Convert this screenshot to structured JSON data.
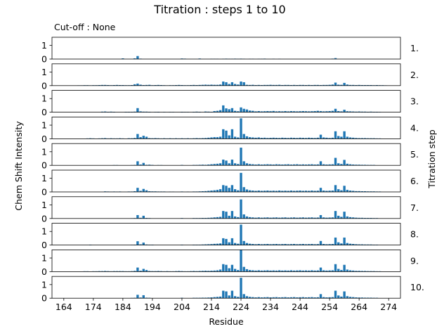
{
  "chart_data": {
    "type": "bar",
    "title": "Titration : steps 1 to 10",
    "subtitle": "Cut-off : None",
    "xlabel": "Residue",
    "ylabel": "Chem Shift Intensity",
    "right_label": "Titration step",
    "bar_color": "#1f77b4",
    "xlim": [
      160,
      278
    ],
    "ylim": [
      0,
      1.6
    ],
    "xticks": [
      164,
      174,
      184,
      194,
      204,
      214,
      224,
      234,
      244,
      254,
      264,
      274
    ],
    "yticks": [
      0,
      1
    ],
    "grid": false,
    "residues": [
      164,
      165,
      166,
      167,
      168,
      169,
      170,
      171,
      172,
      173,
      174,
      175,
      176,
      177,
      178,
      179,
      180,
      181,
      182,
      183,
      184,
      185,
      186,
      187,
      188,
      189,
      190,
      191,
      192,
      193,
      194,
      195,
      196,
      197,
      198,
      199,
      200,
      201,
      202,
      203,
      204,
      205,
      206,
      207,
      208,
      209,
      210,
      211,
      212,
      213,
      214,
      215,
      216,
      217,
      218,
      219,
      220,
      221,
      222,
      223,
      224,
      225,
      226,
      227,
      228,
      229,
      230,
      231,
      232,
      233,
      234,
      235,
      236,
      237,
      238,
      239,
      240,
      241,
      242,
      243,
      244,
      245,
      246,
      247,
      248,
      249,
      250,
      251,
      252,
      253,
      254,
      255,
      256,
      257,
      258,
      259,
      260,
      261,
      262,
      263,
      264,
      265,
      266,
      267,
      268,
      269,
      270,
      271,
      272,
      273,
      274
    ],
    "panels": [
      {
        "label": "1.",
        "values": [
          0,
          0,
          0,
          0,
          0,
          0,
          0,
          0,
          0,
          0,
          0,
          0,
          0,
          0,
          0,
          0,
          0,
          0,
          0,
          0,
          0.05,
          0,
          0,
          0,
          0.05,
          0.22,
          0.03,
          0,
          0,
          0,
          0,
          0,
          0,
          0,
          0,
          0,
          0,
          0,
          0,
          0,
          0.04,
          0.03,
          0,
          0,
          0,
          0,
          0.04,
          0,
          0,
          0,
          0.02,
          0.02,
          0.02,
          0,
          0.02,
          0.03,
          0.02,
          0.02,
          0.03,
          0.02,
          0.03,
          0.02,
          0,
          0.02,
          0.02,
          0,
          0.02,
          0.02,
          0.03,
          0,
          0,
          0.02,
          0,
          0.02,
          0,
          0,
          0,
          0,
          0,
          0,
          0,
          0,
          0,
          0,
          0,
          0,
          0,
          0,
          0,
          0,
          0,
          0.03,
          0.07,
          0,
          0,
          0,
          0,
          0,
          0,
          0,
          0,
          0,
          0,
          0,
          0,
          0,
          0,
          0,
          0,
          0,
          0
        ]
      },
      {
        "label": "2.",
        "values": [
          0,
          0,
          0,
          0,
          0,
          0.02,
          0.02,
          0.03,
          0.03,
          0.02,
          0.03,
          0.03,
          0.04,
          0.05,
          0.05,
          0.04,
          0.03,
          0.04,
          0.05,
          0.04,
          0.04,
          0.03,
          0.03,
          0.04,
          0.1,
          0.15,
          0.07,
          0.04,
          0.05,
          0.06,
          0.03,
          0.04,
          0.05,
          0.04,
          0.03,
          0.02,
          0.03,
          0.03,
          0.04,
          0.05,
          0.04,
          0.03,
          0.03,
          0.04,
          0.05,
          0.04,
          0.05,
          0.06,
          0.07,
          0.06,
          0.07,
          0.06,
          0.06,
          0.08,
          0.3,
          0.25,
          0.12,
          0.25,
          0.12,
          0.08,
          0.3,
          0.25,
          0.06,
          0.05,
          0.06,
          0.04,
          0.05,
          0.04,
          0.05,
          0.05,
          0.06,
          0.05,
          0.05,
          0.06,
          0.04,
          0.05,
          0.05,
          0.04,
          0.05,
          0.04,
          0.05,
          0.05,
          0.04,
          0.05,
          0.04,
          0.05,
          0.05,
          0.04,
          0.05,
          0.05,
          0.06,
          0.08,
          0.22,
          0.07,
          0.06,
          0.2,
          0.08,
          0.05,
          0.05,
          0.04,
          0.05,
          0.04,
          0.04,
          0.04,
          0.04,
          0.03,
          0.04,
          0.03,
          0.03,
          0.02,
          0
        ]
      },
      {
        "label": "3.",
        "values": [
          0,
          0,
          0,
          0,
          0,
          0,
          0,
          0,
          0,
          0,
          0,
          0,
          0,
          0.04,
          0.05,
          0.03,
          0.04,
          0.03,
          0,
          0,
          0,
          0.03,
          0.03,
          0.03,
          0.04,
          0.3,
          0.06,
          0.04,
          0.04,
          0.03,
          0,
          0.02,
          0.03,
          0,
          0.02,
          0,
          0.02,
          0.02,
          0,
          0,
          0.03,
          0.02,
          0.02,
          0,
          0.03,
          0.04,
          0.03,
          0,
          0.05,
          0.04,
          0.03,
          0.08,
          0.1,
          0.15,
          0.5,
          0.28,
          0.22,
          0.3,
          0.1,
          0.07,
          0.35,
          0.25,
          0.2,
          0.12,
          0.1,
          0.06,
          0.08,
          0.06,
          0.07,
          0.08,
          0.07,
          0.09,
          0.06,
          0.07,
          0.06,
          0.08,
          0.06,
          0.08,
          0.07,
          0.06,
          0.07,
          0.08,
          0.07,
          0.06,
          0.07,
          0.08,
          0.1,
          0.08,
          0.06,
          0.07,
          0.08,
          0.1,
          0.25,
          0.08,
          0.06,
          0.18,
          0.07,
          0.06,
          0.05,
          0.04,
          0.05,
          0.04,
          0.04,
          0.03,
          0.04,
          0.03,
          0.03,
          0.02,
          0,
          0,
          0
        ]
      },
      {
        "label": "4.",
        "values": [
          0,
          0,
          0,
          0,
          0,
          0,
          0,
          0,
          0.03,
          0.04,
          0.03,
          0,
          0.03,
          0.04,
          0.05,
          0.03,
          0.04,
          0.03,
          0.03,
          0.04,
          0.03,
          0.02,
          0.04,
          0.04,
          0.06,
          0.35,
          0.12,
          0.22,
          0.15,
          0.05,
          0.04,
          0.05,
          0.04,
          0.03,
          0.04,
          0.03,
          0.04,
          0.03,
          0.04,
          0.03,
          0.04,
          0.03,
          0.04,
          0.03,
          0.04,
          0.05,
          0.04,
          0.05,
          0.06,
          0.08,
          0.1,
          0.12,
          0.12,
          0.15,
          0.7,
          0.6,
          0.25,
          0.7,
          0.15,
          0.1,
          1.5,
          0.35,
          0.18,
          0.12,
          0.1,
          0.08,
          0.1,
          0.07,
          0.08,
          0.06,
          0.07,
          0.08,
          0.07,
          0.06,
          0.08,
          0.07,
          0.06,
          0.08,
          0.07,
          0.06,
          0.08,
          0.07,
          0.06,
          0.08,
          0.07,
          0.06,
          0.08,
          0.3,
          0.1,
          0.08,
          0.06,
          0.08,
          0.55,
          0.2,
          0.15,
          0.55,
          0.15,
          0.1,
          0.08,
          0.06,
          0.05,
          0.05,
          0.05,
          0.04,
          0.04,
          0.04,
          0.03,
          0.03,
          0,
          0,
          0
        ]
      },
      {
        "label": "5.",
        "values": [
          0,
          0,
          0,
          0,
          0,
          0,
          0,
          0,
          0,
          0,
          0,
          0,
          0,
          0,
          0,
          0,
          0,
          0.02,
          0.02,
          0,
          0,
          0,
          0,
          0.02,
          0.03,
          0.3,
          0.06,
          0.18,
          0.04,
          0.05,
          0.03,
          0,
          0.02,
          0.02,
          0,
          0,
          0,
          0,
          0,
          0,
          0.03,
          0,
          0,
          0,
          0.03,
          0.03,
          0.04,
          0.05,
          0.04,
          0.06,
          0.08,
          0.1,
          0.12,
          0.15,
          0.42,
          0.35,
          0.15,
          0.42,
          0.15,
          0.1,
          1.3,
          0.3,
          0.15,
          0.1,
          0.08,
          0.06,
          0.08,
          0.06,
          0.07,
          0.08,
          0.07,
          0.06,
          0.08,
          0.07,
          0.06,
          0.07,
          0.08,
          0.06,
          0.07,
          0.08,
          0.06,
          0.07,
          0.06,
          0.07,
          0.08,
          0.06,
          0.07,
          0.3,
          0.08,
          0.06,
          0.07,
          0.08,
          0.55,
          0.15,
          0.1,
          0.4,
          0.12,
          0.08,
          0.06,
          0.05,
          0.05,
          0.04,
          0.04,
          0.03,
          0.03,
          0.03,
          0,
          0,
          0,
          0,
          0
        ]
      },
      {
        "label": "6.",
        "values": [
          0,
          0,
          0,
          0,
          0,
          0,
          0,
          0,
          0,
          0,
          0,
          0,
          0,
          0,
          0.04,
          0.03,
          0.02,
          0.03,
          0.02,
          0.03,
          0,
          0,
          0.03,
          0.03,
          0.05,
          0.3,
          0.08,
          0.22,
          0.12,
          0.05,
          0.04,
          0.04,
          0.03,
          0.03,
          0.03,
          0,
          0.02,
          0.02,
          0,
          0,
          0.03,
          0,
          0.02,
          0,
          0.03,
          0.03,
          0.04,
          0.05,
          0.06,
          0.08,
          0.1,
          0.12,
          0.15,
          0.2,
          0.5,
          0.45,
          0.3,
          0.5,
          0.2,
          0.12,
          1.4,
          0.35,
          0.18,
          0.12,
          0.1,
          0.08,
          0.1,
          0.08,
          0.09,
          0.1,
          0.08,
          0.09,
          0.08,
          0.1,
          0.08,
          0.09,
          0.08,
          0.1,
          0.08,
          0.09,
          0.1,
          0.08,
          0.09,
          0.08,
          0.1,
          0.08,
          0.09,
          0.3,
          0.1,
          0.08,
          0.09,
          0.1,
          0.5,
          0.2,
          0.12,
          0.45,
          0.15,
          0.1,
          0.08,
          0.06,
          0.06,
          0.05,
          0.05,
          0.04,
          0.04,
          0.04,
          0.03,
          0.03,
          0,
          0,
          0
        ]
      },
      {
        "label": "7.",
        "values": [
          0,
          0,
          0,
          0,
          0,
          0,
          0,
          0,
          0,
          0,
          0,
          0,
          0,
          0,
          0,
          0,
          0,
          0,
          0,
          0,
          0,
          0,
          0,
          0.02,
          0.03,
          0.25,
          0.05,
          0.2,
          0.04,
          0.03,
          0,
          0,
          0,
          0,
          0,
          0,
          0,
          0,
          0,
          0,
          0.03,
          0,
          0,
          0,
          0.03,
          0.03,
          0.03,
          0.04,
          0.04,
          0.05,
          0.06,
          0.08,
          0.1,
          0.12,
          0.55,
          0.5,
          0.2,
          0.55,
          0.15,
          0.1,
          1.4,
          0.3,
          0.15,
          0.1,
          0.08,
          0.06,
          0.08,
          0.06,
          0.07,
          0.08,
          0.06,
          0.07,
          0.08,
          0.06,
          0.07,
          0.08,
          0.06,
          0.07,
          0.08,
          0.06,
          0.07,
          0.08,
          0.06,
          0.07,
          0.08,
          0.06,
          0.07,
          0.25,
          0.08,
          0.06,
          0.07,
          0.08,
          0.55,
          0.2,
          0.12,
          0.5,
          0.15,
          0.1,
          0.08,
          0.06,
          0.05,
          0.05,
          0.04,
          0.04,
          0.04,
          0.03,
          0.03,
          0,
          0,
          0,
          0
        ]
      },
      {
        "label": "8.",
        "values": [
          0,
          0,
          0,
          0,
          0,
          0,
          0,
          0,
          0,
          0.03,
          0,
          0,
          0,
          0,
          0,
          0,
          0,
          0,
          0,
          0,
          0,
          0,
          0,
          0.02,
          0.03,
          0.28,
          0.05,
          0.18,
          0.04,
          0.03,
          0.03,
          0,
          0,
          0,
          0,
          0,
          0,
          0,
          0,
          0,
          0.03,
          0,
          0,
          0,
          0.03,
          0.03,
          0.03,
          0.04,
          0.05,
          0.06,
          0.07,
          0.09,
          0.1,
          0.12,
          0.5,
          0.45,
          0.2,
          0.5,
          0.15,
          0.1,
          1.5,
          0.3,
          0.15,
          0.1,
          0.08,
          0.06,
          0.08,
          0.06,
          0.07,
          0.08,
          0.06,
          0.07,
          0.08,
          0.06,
          0.07,
          0.08,
          0.06,
          0.07,
          0.08,
          0.06,
          0.07,
          0.08,
          0.06,
          0.07,
          0.08,
          0.06,
          0.07,
          0.3,
          0.08,
          0.06,
          0.07,
          0.08,
          0.55,
          0.2,
          0.12,
          0.55,
          0.15,
          0.1,
          0.08,
          0.06,
          0.05,
          0.05,
          0.04,
          0.04,
          0.04,
          0.03,
          0.03,
          0,
          0,
          0,
          0
        ]
      },
      {
        "label": "9.",
        "values": [
          0,
          0,
          0,
          0,
          0,
          0.02,
          0.02,
          0.03,
          0.03,
          0.02,
          0.03,
          0.03,
          0.04,
          0.04,
          0.05,
          0.04,
          0.03,
          0.04,
          0.04,
          0.04,
          0.04,
          0.03,
          0.03,
          0.04,
          0.06,
          0.3,
          0.07,
          0.2,
          0.12,
          0.05,
          0.04,
          0.04,
          0.05,
          0.04,
          0.03,
          0.04,
          0.03,
          0.03,
          0.04,
          0.05,
          0.04,
          0.03,
          0.03,
          0.04,
          0.05,
          0.04,
          0.05,
          0.06,
          0.07,
          0.06,
          0.07,
          0.08,
          0.1,
          0.15,
          0.55,
          0.5,
          0.25,
          0.5,
          0.2,
          0.12,
          1.6,
          0.35,
          0.18,
          0.12,
          0.1,
          0.08,
          0.1,
          0.08,
          0.09,
          0.1,
          0.08,
          0.09,
          0.08,
          0.1,
          0.08,
          0.09,
          0.08,
          0.1,
          0.08,
          0.09,
          0.1,
          0.08,
          0.09,
          0.08,
          0.1,
          0.08,
          0.09,
          0.3,
          0.1,
          0.08,
          0.09,
          0.1,
          0.55,
          0.2,
          0.12,
          0.5,
          0.15,
          0.1,
          0.08,
          0.06,
          0.06,
          0.05,
          0.05,
          0.04,
          0.04,
          0.04,
          0.03,
          0.03,
          0,
          0,
          0
        ]
      },
      {
        "label": "10.",
        "values": [
          0,
          0,
          0,
          0,
          0,
          0,
          0,
          0,
          0,
          0,
          0,
          0,
          0,
          0,
          0,
          0,
          0,
          0,
          0,
          0,
          0,
          0,
          0,
          0.02,
          0.03,
          0.25,
          0.05,
          0.22,
          0.04,
          0.03,
          0,
          0,
          0,
          0,
          0,
          0,
          0,
          0,
          0,
          0,
          0.03,
          0,
          0,
          0,
          0.03,
          0.03,
          0.03,
          0.04,
          0.04,
          0.05,
          0.06,
          0.08,
          0.1,
          0.12,
          0.55,
          0.5,
          0.2,
          0.55,
          0.15,
          0.1,
          1.5,
          0.3,
          0.15,
          0.1,
          0.08,
          0.06,
          0.08,
          0.06,
          0.07,
          0.08,
          0.06,
          0.07,
          0.08,
          0.06,
          0.07,
          0.08,
          0.06,
          0.07,
          0.08,
          0.06,
          0.07,
          0.08,
          0.06,
          0.07,
          0.08,
          0.06,
          0.07,
          0.3,
          0.08,
          0.06,
          0.07,
          0.08,
          0.55,
          0.2,
          0.12,
          0.5,
          0.15,
          0.1,
          0.08,
          0.06,
          0.05,
          0.05,
          0.04,
          0.04,
          0.04,
          0.03,
          0.03,
          0,
          0,
          0,
          0
        ]
      }
    ]
  }
}
